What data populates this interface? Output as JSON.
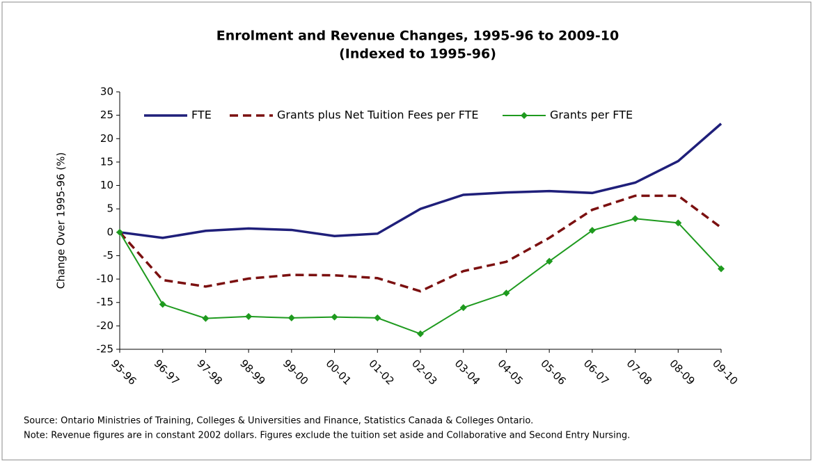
{
  "chart_data": {
    "type": "line",
    "title": "Enrolment and Revenue Changes, 1995-96 to 2009-10",
    "subtitle": "(Indexed to 1995-96)",
    "y_label": "Change Over 1995-96 (%)",
    "categories": [
      "95-96",
      "96-97",
      "97-98",
      "98-99",
      "99-00",
      "00-01",
      "01-02",
      "02-03",
      "03-04",
      "04-05",
      "05-06",
      "06-07",
      "07-08",
      "08-09",
      "09-10"
    ],
    "series": [
      {
        "name": "FTE",
        "color": "#1f1f7a",
        "style": "solid",
        "marker": "none",
        "values": [
          0,
          -1.2,
          0.3,
          0.8,
          0.5,
          -0.8,
          -0.3,
          5,
          8,
          8.5,
          8.8,
          8.4,
          10.6,
          15.2,
          23.2
        ]
      },
      {
        "name": "Grants plus Net Tuition Fees per FTE",
        "color": "#7b1010",
        "style": "dashed",
        "marker": "none",
        "values": [
          0,
          -10.2,
          -11.6,
          -9.9,
          -9.1,
          -9.2,
          -9.8,
          -12.6,
          -8.3,
          -6.3,
          -1.2,
          4.8,
          7.8,
          7.8,
          1
        ]
      },
      {
        "name": "Grants per FTE",
        "color": "#1e9a1e",
        "style": "solid",
        "marker": "diamond",
        "values": [
          0,
          -15.4,
          -18.4,
          -18,
          -18.3,
          -18.1,
          -18.3,
          -21.7,
          -16.1,
          -13,
          -6.2,
          0.4,
          2.9,
          2,
          -7.8
        ]
      }
    ],
    "ylim": [
      -25,
      30
    ],
    "yticks": [
      30,
      25,
      20,
      15,
      10,
      5,
      0,
      -5,
      -10,
      -15,
      -20,
      -25
    ],
    "grid": false,
    "legend": "top",
    "source": "Source:  Ontario Ministries of Training, Colleges & Universities and Finance, Statistics Canada & Colleges Ontario.",
    "note": "Note:  Revenue figures are in constant 2002 dollars.  Figures exclude the tuition set aside and Collaborative and Second Entry Nursing."
  }
}
